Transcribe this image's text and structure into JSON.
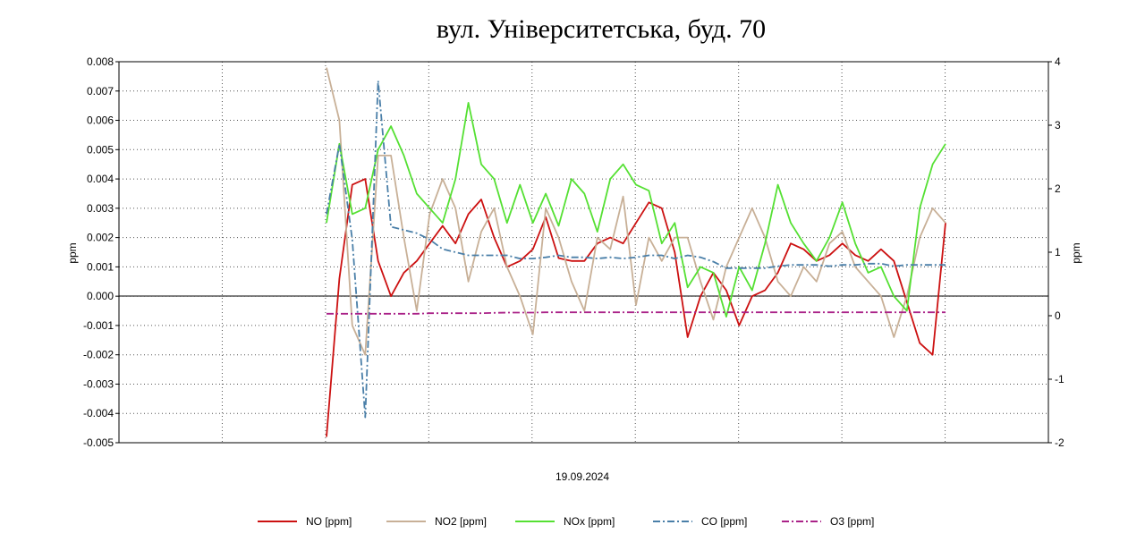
{
  "chart_data": {
    "type": "line",
    "title": "вул. Університетська, буд. 70",
    "xlabel": "19.09.2024",
    "ylabel": "ppm",
    "y2label": "ppm",
    "ylim": [
      -0.005,
      0.008
    ],
    "y2lim": [
      -2,
      4
    ],
    "grid": true,
    "legend_position": "bottom",
    "y_ticks": [
      "0.008",
      "0.007",
      "0.006",
      "0.005",
      "0.004",
      "0.003",
      "0.002",
      "0.001",
      "0.000",
      "-0.001",
      "-0.002",
      "-0.003",
      "-0.004",
      "-0.005"
    ],
    "y2_ticks": [
      "4",
      "3",
      "2",
      "1",
      "0",
      "-1",
      "-2"
    ],
    "x": [
      0,
      0.5,
      1,
      1.5,
      2,
      2.5,
      3,
      3.5,
      4,
      4.5,
      5,
      5.5,
      6,
      6.5,
      7,
      7.5,
      8,
      8.5,
      9,
      9.5,
      10,
      10.5,
      11,
      11.5,
      12,
      12.5,
      13,
      13.5,
      14,
      14.5,
      15,
      15.5,
      16,
      16.5,
      17,
      17.5,
      18,
      18.5,
      19,
      19.5,
      20,
      20.5,
      21,
      21.5,
      22,
      22.5,
      23,
      23.5,
      24
    ],
    "series": [
      {
        "name": "NO [ppm]",
        "axis": "left",
        "color": "#cc1111",
        "dash": "",
        "values": [
          -0.0048,
          0.0006,
          0.0038,
          0.004,
          0.0012,
          0.0,
          0.0008,
          0.0012,
          0.0018,
          0.0024,
          0.0018,
          0.0028,
          0.0033,
          0.002,
          0.001,
          0.0012,
          0.0016,
          0.0027,
          0.0013,
          0.0012,
          0.0012,
          0.0018,
          0.002,
          0.0018,
          0.0025,
          0.0032,
          0.003,
          0.0015,
          -0.0014,
          0.0,
          0.0008,
          0.0002,
          -0.001,
          0.0,
          0.0002,
          0.0008,
          0.0018,
          0.0016,
          0.0012,
          0.0014,
          0.0018,
          0.0014,
          0.0012,
          0.0016,
          0.0012,
          -0.0002,
          -0.0016,
          -0.002,
          0.0025
        ]
      },
      {
        "name": "NO2 [ppm]",
        "axis": "left",
        "color": "#c8b097",
        "dash": "",
        "values": [
          0.0078,
          0.006,
          -0.001,
          -0.002,
          0.0048,
          0.0048,
          0.002,
          -0.0005,
          0.0028,
          0.004,
          0.003,
          0.0005,
          0.0022,
          0.003,
          0.001,
          0.0,
          -0.0013,
          0.003,
          0.002,
          0.0005,
          -0.0005,
          0.002,
          0.0016,
          0.0034,
          -0.0003,
          0.002,
          0.0012,
          0.002,
          0.002,
          0.0005,
          -0.0008,
          0.001,
          0.002,
          0.003,
          0.002,
          0.0005,
          0.0,
          0.001,
          0.0005,
          0.0018,
          0.0022,
          0.001,
          0.0005,
          0.0,
          -0.0014,
          0.0,
          0.002,
          0.003,
          0.0025
        ]
      },
      {
        "name": "NOx [ppm]",
        "axis": "left",
        "color": "#55e033",
        "dash": "",
        "values": [
          0.0025,
          0.0052,
          0.0028,
          0.003,
          0.005,
          0.0058,
          0.0048,
          0.0035,
          0.003,
          0.0025,
          0.004,
          0.0066,
          0.0045,
          0.004,
          0.0025,
          0.0038,
          0.0025,
          0.0035,
          0.0024,
          0.004,
          0.0035,
          0.0022,
          0.004,
          0.0045,
          0.0038,
          0.0036,
          0.0018,
          0.0025,
          0.0003,
          0.001,
          0.0008,
          -0.0007,
          0.001,
          0.0002,
          0.0018,
          0.0038,
          0.0025,
          0.0018,
          0.0012,
          0.002,
          0.0032,
          0.0018,
          0.0008,
          0.001,
          0.0,
          -0.0005,
          0.003,
          0.0045,
          0.0052
        ]
      },
      {
        "name": "CO [ppm]",
        "axis": "right",
        "color": "#4a7fa8",
        "dash": "8,3,2,3",
        "values": [
          1.6,
          2.7,
          1.2,
          -1.6,
          3.7,
          1.4,
          1.35,
          1.3,
          1.2,
          1.05,
          1.0,
          0.95,
          0.95,
          0.95,
          0.95,
          0.9,
          0.9,
          0.92,
          0.95,
          0.92,
          0.92,
          0.9,
          0.92,
          0.9,
          0.92,
          0.95,
          0.95,
          0.9,
          0.95,
          0.92,
          0.85,
          0.75,
          0.75,
          0.75,
          0.75,
          0.78,
          0.8,
          0.8,
          0.8,
          0.78,
          0.8,
          0.8,
          0.82,
          0.82,
          0.78,
          0.8,
          0.8,
          0.8,
          0.8
        ]
      },
      {
        "name": "O3 [ppm]",
        "axis": "left",
        "color": "#aa2288",
        "dash": "8,3,2,3",
        "values": [
          -0.0006,
          -0.0006,
          -0.0006,
          -0.0006,
          -0.0006,
          -0.0006,
          -0.0006,
          -0.0006,
          -0.00058,
          -0.00058,
          -0.00058,
          -0.00058,
          -0.00058,
          -0.00057,
          -0.00056,
          -0.00056,
          -0.00056,
          -0.00055,
          -0.00055,
          -0.00055,
          -0.00055,
          -0.00055,
          -0.00055,
          -0.00055,
          -0.00055,
          -0.00055,
          -0.00055,
          -0.00055,
          -0.00055,
          -0.00055,
          -0.00055,
          -0.00055,
          -0.00055,
          -0.00055,
          -0.00055,
          -0.00055,
          -0.00055,
          -0.00055,
          -0.00055,
          -0.00055,
          -0.00055,
          -0.00055,
          -0.00055,
          -0.00055,
          -0.00055,
          -0.00055,
          -0.00055,
          -0.00055,
          -0.00055
        ]
      }
    ]
  }
}
